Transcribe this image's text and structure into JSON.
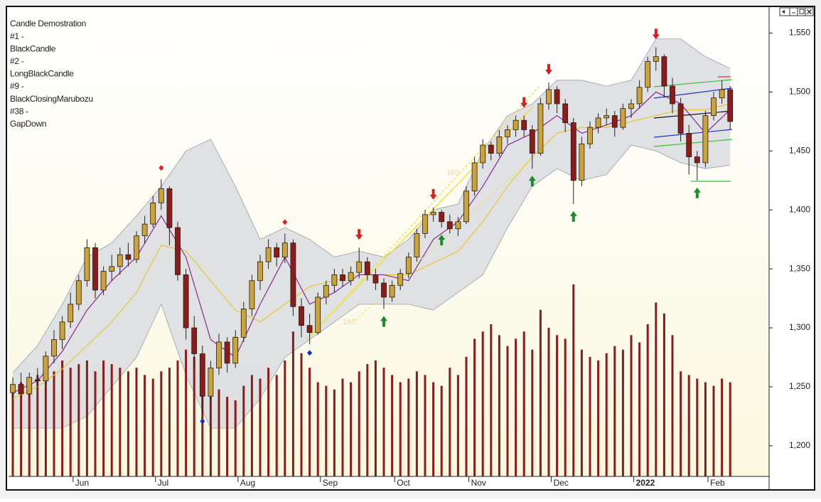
{
  "chart_data": {
    "type": "candlestick",
    "legend_lines": [
      "Candle Demostration",
      "#1 -",
      "BlackCandle",
      "#2 -",
      "LongBlackCandle",
      "#9 -",
      "BlackClosingMarubozu",
      "#38 -",
      "GapDown"
    ],
    "annotations": [
      "160",
      "165"
    ],
    "categories": [
      null,
      null,
      null,
      null,
      null,
      null,
      null,
      null,
      "Jun",
      null,
      null,
      null,
      null,
      null,
      null,
      null,
      null,
      null,
      "Jul",
      null,
      null,
      null,
      null,
      null,
      null,
      null,
      null,
      null,
      "Aug",
      null,
      null,
      null,
      null,
      null,
      null,
      null,
      null,
      null,
      "Sep",
      null,
      null,
      null,
      null,
      null,
      null,
      null,
      null,
      "Oct",
      null,
      null,
      null,
      null,
      null,
      null,
      null,
      null,
      "Nov",
      null,
      null,
      null,
      null,
      null,
      null,
      null,
      null,
      null,
      "Dec",
      null,
      null,
      null,
      null,
      null,
      null,
      null,
      null,
      null,
      "2022",
      null,
      null,
      null,
      null,
      null,
      null,
      null,
      null,
      "Feb",
      null,
      null
    ],
    "open": [
      1245,
      1252,
      1244,
      1256,
      1255,
      1276,
      1290,
      1305,
      1320,
      1340,
      1368,
      1332,
      1348,
      1352,
      1362,
      1358,
      1378,
      1388,
      1406,
      1418,
      1385,
      1345,
      1300,
      1278,
      1242,
      1266,
      1288,
      1270,
      1292,
      1316,
      1340,
      1356,
      1368,
      1360,
      1372,
      1318,
      1302,
      1296,
      1326,
      1336,
      1345,
      1340,
      1347,
      1356,
      1345,
      1338,
      1326,
      1336,
      1346,
      1360,
      1380,
      1396,
      1398,
      1390,
      1384,
      1390,
      1416,
      1440,
      1455,
      1448,
      1462,
      1468,
      1476,
      1468,
      1448,
      1490,
      1502,
      1490,
      1474,
      1425,
      1456,
      1470,
      1478,
      1480,
      1470,
      1486,
      1490,
      1504,
      1526,
      1530,
      1505,
      1490,
      1465,
      1445,
      1440,
      1480,
      1495,
      1502
    ],
    "high": [
      1258,
      1262,
      1262,
      1266,
      1280,
      1298,
      1310,
      1330,
      1345,
      1375,
      1372,
      1352,
      1362,
      1368,
      1372,
      1382,
      1395,
      1412,
      1426,
      1420,
      1390,
      1350,
      1310,
      1285,
      1272,
      1295,
      1292,
      1298,
      1322,
      1345,
      1362,
      1375,
      1372,
      1380,
      1375,
      1325,
      1312,
      1330,
      1340,
      1350,
      1350,
      1352,
      1368,
      1360,
      1350,
      1342,
      1340,
      1350,
      1364,
      1384,
      1400,
      1402,
      1400,
      1396,
      1394,
      1420,
      1445,
      1460,
      1458,
      1468,
      1472,
      1480,
      1480,
      1472,
      1495,
      1508,
      1505,
      1494,
      1478,
      1462,
      1475,
      1482,
      1486,
      1484,
      1490,
      1494,
      1510,
      1530,
      1538,
      1532,
      1512,
      1495,
      1472,
      1450,
      1484,
      1500,
      1510,
      1505
    ],
    "low": [
      1238,
      1240,
      1242,
      1248,
      1252,
      1270,
      1282,
      1300,
      1315,
      1335,
      1325,
      1328,
      1340,
      1345,
      1352,
      1355,
      1372,
      1385,
      1400,
      1370,
      1340,
      1290,
      1265,
      1228,
      1238,
      1260,
      1262,
      1266,
      1288,
      1310,
      1332,
      1350,
      1352,
      1355,
      1310,
      1292,
      1286,
      1294,
      1320,
      1330,
      1335,
      1336,
      1342,
      1340,
      1332,
      1316,
      1322,
      1332,
      1342,
      1356,
      1376,
      1390,
      1385,
      1380,
      1378,
      1388,
      1412,
      1435,
      1442,
      1445,
      1456,
      1462,
      1462,
      1435,
      1446,
      1485,
      1482,
      1466,
      1405,
      1420,
      1452,
      1465,
      1472,
      1462,
      1468,
      1478,
      1486,
      1500,
      1518,
      1495,
      1482,
      1458,
      1430,
      1425,
      1436,
      1476,
      1490,
      1468
    ],
    "close": [
      1252,
      1244,
      1258,
      1255,
      1276,
      1290,
      1305,
      1320,
      1340,
      1368,
      1332,
      1348,
      1352,
      1362,
      1358,
      1378,
      1388,
      1406,
      1418,
      1385,
      1345,
      1300,
      1278,
      1242,
      1266,
      1288,
      1270,
      1292,
      1316,
      1340,
      1356,
      1368,
      1360,
      1372,
      1318,
      1302,
      1296,
      1326,
      1336,
      1345,
      1340,
      1347,
      1356,
      1345,
      1338,
      1326,
      1336,
      1346,
      1360,
      1380,
      1396,
      1398,
      1390,
      1384,
      1390,
      1416,
      1440,
      1455,
      1448,
      1462,
      1468,
      1476,
      1468,
      1448,
      1490,
      1502,
      1490,
      1474,
      1425,
      1456,
      1470,
      1478,
      1480,
      1470,
      1486,
      1490,
      1504,
      1526,
      1530,
      1505,
      1490,
      1465,
      1445,
      1440,
      1480,
      1495,
      1502,
      1475
    ],
    "volume": [
      120,
      130,
      125,
      140,
      150,
      145,
      160,
      150,
      155,
      160,
      145,
      160,
      155,
      150,
      145,
      150,
      140,
      135,
      145,
      150,
      160,
      175,
      165,
      155,
      130,
      120,
      110,
      105,
      125,
      140,
      135,
      150,
      140,
      160,
      200,
      170,
      150,
      130,
      125,
      120,
      135,
      130,
      145,
      155,
      160,
      150,
      140,
      130,
      135,
      145,
      140,
      130,
      125,
      150,
      140,
      165,
      190,
      200,
      210,
      195,
      180,
      190,
      200,
      175,
      230,
      205,
      195,
      190,
      265,
      175,
      165,
      160,
      170,
      180,
      175,
      195,
      185,
      210,
      240,
      225,
      195,
      145,
      140,
      135,
      130,
      125,
      135,
      130
    ],
    "up_color": "#c9a43a",
    "down_color": "#8b1c1c",
    "volume_color": "#8b1c1c",
    "band_x": [
      0,
      3,
      6,
      9,
      12,
      15,
      18,
      21,
      24,
      27,
      30,
      33,
      36,
      39,
      42,
      45,
      48,
      51,
      54,
      57,
      60,
      63,
      66,
      69,
      72,
      75,
      78,
      81,
      84,
      87
    ],
    "band_upper": {
      "color": "#9aa0a8",
      "values": [
        1262,
        1285,
        1320,
        1360,
        1372,
        1395,
        1420,
        1450,
        1460,
        1420,
        1375,
        1385,
        1375,
        1360,
        1365,
        1360,
        1375,
        1400,
        1405,
        1450,
        1480,
        1490,
        1510,
        1510,
        1505,
        1510,
        1545,
        1545,
        1530,
        1520
      ]
    },
    "band_lower": {
      "color": "#9aa0a8",
      "values": [
        1215,
        1215,
        1215,
        1225,
        1250,
        1275,
        1320,
        1260,
        1215,
        1215,
        1240,
        1275,
        1290,
        1305,
        1320,
        1320,
        1320,
        1315,
        1330,
        1345,
        1385,
        1420,
        1435,
        1425,
        1430,
        1455,
        1450,
        1440,
        1435,
        1438
      ]
    },
    "band_fill": "#d9dce1",
    "ma_short": {
      "color": "#8a2a8a",
      "values": [
        1245,
        1255,
        1280,
        1315,
        1340,
        1360,
        1395,
        1360,
        1290,
        1275,
        1320,
        1360,
        1320,
        1330,
        1345,
        1345,
        1340,
        1375,
        1390,
        1420,
        1455,
        1465,
        1480,
        1465,
        1472,
        1480,
        1500,
        1490,
        1465,
        1485
      ]
    },
    "ma_long": {
      "color": "#e8c630",
      "values": [
        1240,
        1250,
        1265,
        1285,
        1305,
        1330,
        1370,
        1365,
        1340,
        1315,
        1305,
        1320,
        1335,
        1340,
        1345,
        1345,
        1345,
        1355,
        1365,
        1390,
        1420,
        1445,
        1465,
        1470,
        1470,
        1475,
        1480,
        1485,
        1485,
        1490
      ]
    },
    "signals": [
      {
        "index": 42,
        "shape": "down-arrow",
        "color": "#d42020"
      },
      {
        "index": 51,
        "shape": "down-arrow",
        "color": "#d42020"
      },
      {
        "index": 62,
        "shape": "down-arrow",
        "color": "#d42020"
      },
      {
        "index": 65,
        "shape": "down-arrow",
        "color": "#d42020"
      },
      {
        "index": 78,
        "shape": "down-arrow",
        "color": "#d42020"
      },
      {
        "index": 45,
        "shape": "up-arrow",
        "color": "#1f8a2a"
      },
      {
        "index": 52,
        "shape": "up-arrow",
        "color": "#1f8a2a"
      },
      {
        "index": 63,
        "shape": "up-arrow",
        "color": "#1f8a2a"
      },
      {
        "index": 68,
        "shape": "up-arrow",
        "color": "#1f8a2a"
      },
      {
        "index": 83,
        "shape": "up-arrow",
        "color": "#1f8a2a"
      },
      {
        "index": 18,
        "shape": "diamond-above",
        "color": "#e02020"
      },
      {
        "index": 33,
        "shape": "diamond-above",
        "color": "#e02020"
      },
      {
        "index": 23,
        "shape": "diamond-below",
        "color": "#1030c0"
      },
      {
        "index": 36,
        "shape": "diamond-below",
        "color": "#1030c0"
      }
    ],
    "ylim": [
      1174,
      1572
    ],
    "yticks": [
      {
        "value": 1200,
        "label": "1,200"
      },
      {
        "value": 1250,
        "label": "1,250"
      },
      {
        "value": 1300,
        "label": "1,300"
      },
      {
        "value": 1350,
        "label": "1,350"
      },
      {
        "value": 1400,
        "label": "1,400"
      },
      {
        "value": 1450,
        "label": "1,450"
      },
      {
        "value": 1500,
        "label": "1,500"
      },
      {
        "value": 1550,
        "label": "1,550"
      }
    ]
  }
}
